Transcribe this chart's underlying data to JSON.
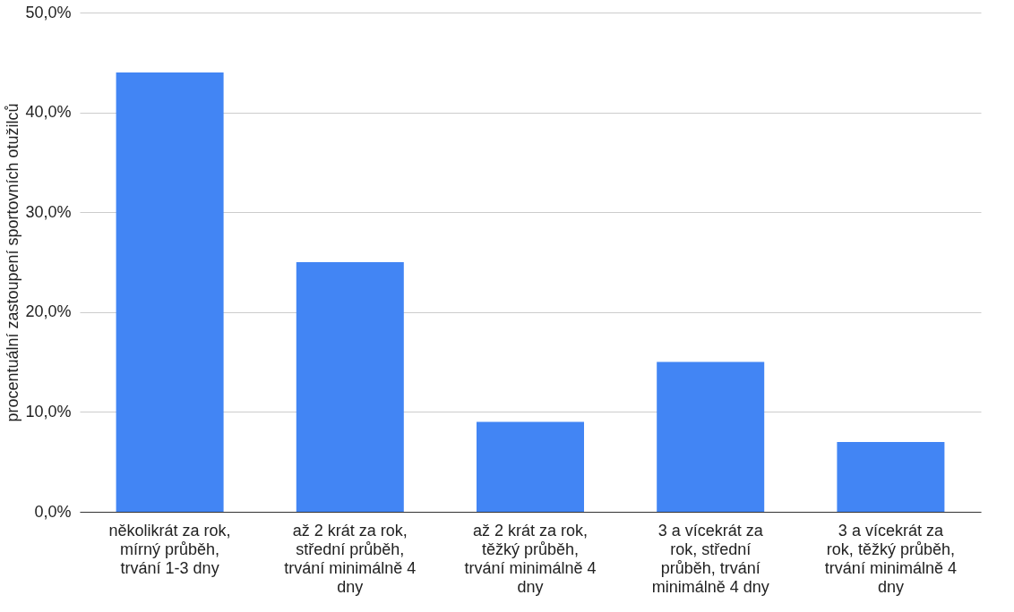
{
  "chart_data": {
    "type": "bar",
    "ylabel": "procentuální zastoupení sportovních otužilců",
    "categories": [
      "několikrát za rok, mírný průběh, trvání 1-3 dny",
      "až 2 krát za rok, střední průběh, trvání minimálně 4 dny",
      "až 2 krát za rok, těžký průběh, trvání minimálně 4 dny",
      "3 a vícekrát za rok, střední průběh, trvání minimálně 4 dny",
      "3 a vícekrát za rok, těžký průběh, trvání minimálně 4 dny"
    ],
    "values": [
      44,
      25,
      9,
      15,
      7
    ],
    "color": "#4285f4",
    "ylim": [
      0,
      50
    ],
    "yticks": [
      {
        "value": 0,
        "label": "0,0%"
      },
      {
        "value": 10,
        "label": "10,0%"
      },
      {
        "value": 20,
        "label": "20,0%"
      },
      {
        "value": 30,
        "label": "30,0%"
      },
      {
        "value": 40,
        "label": "40,0%"
      },
      {
        "value": 50,
        "label": "50,0%"
      }
    ],
    "grid": "y"
  }
}
